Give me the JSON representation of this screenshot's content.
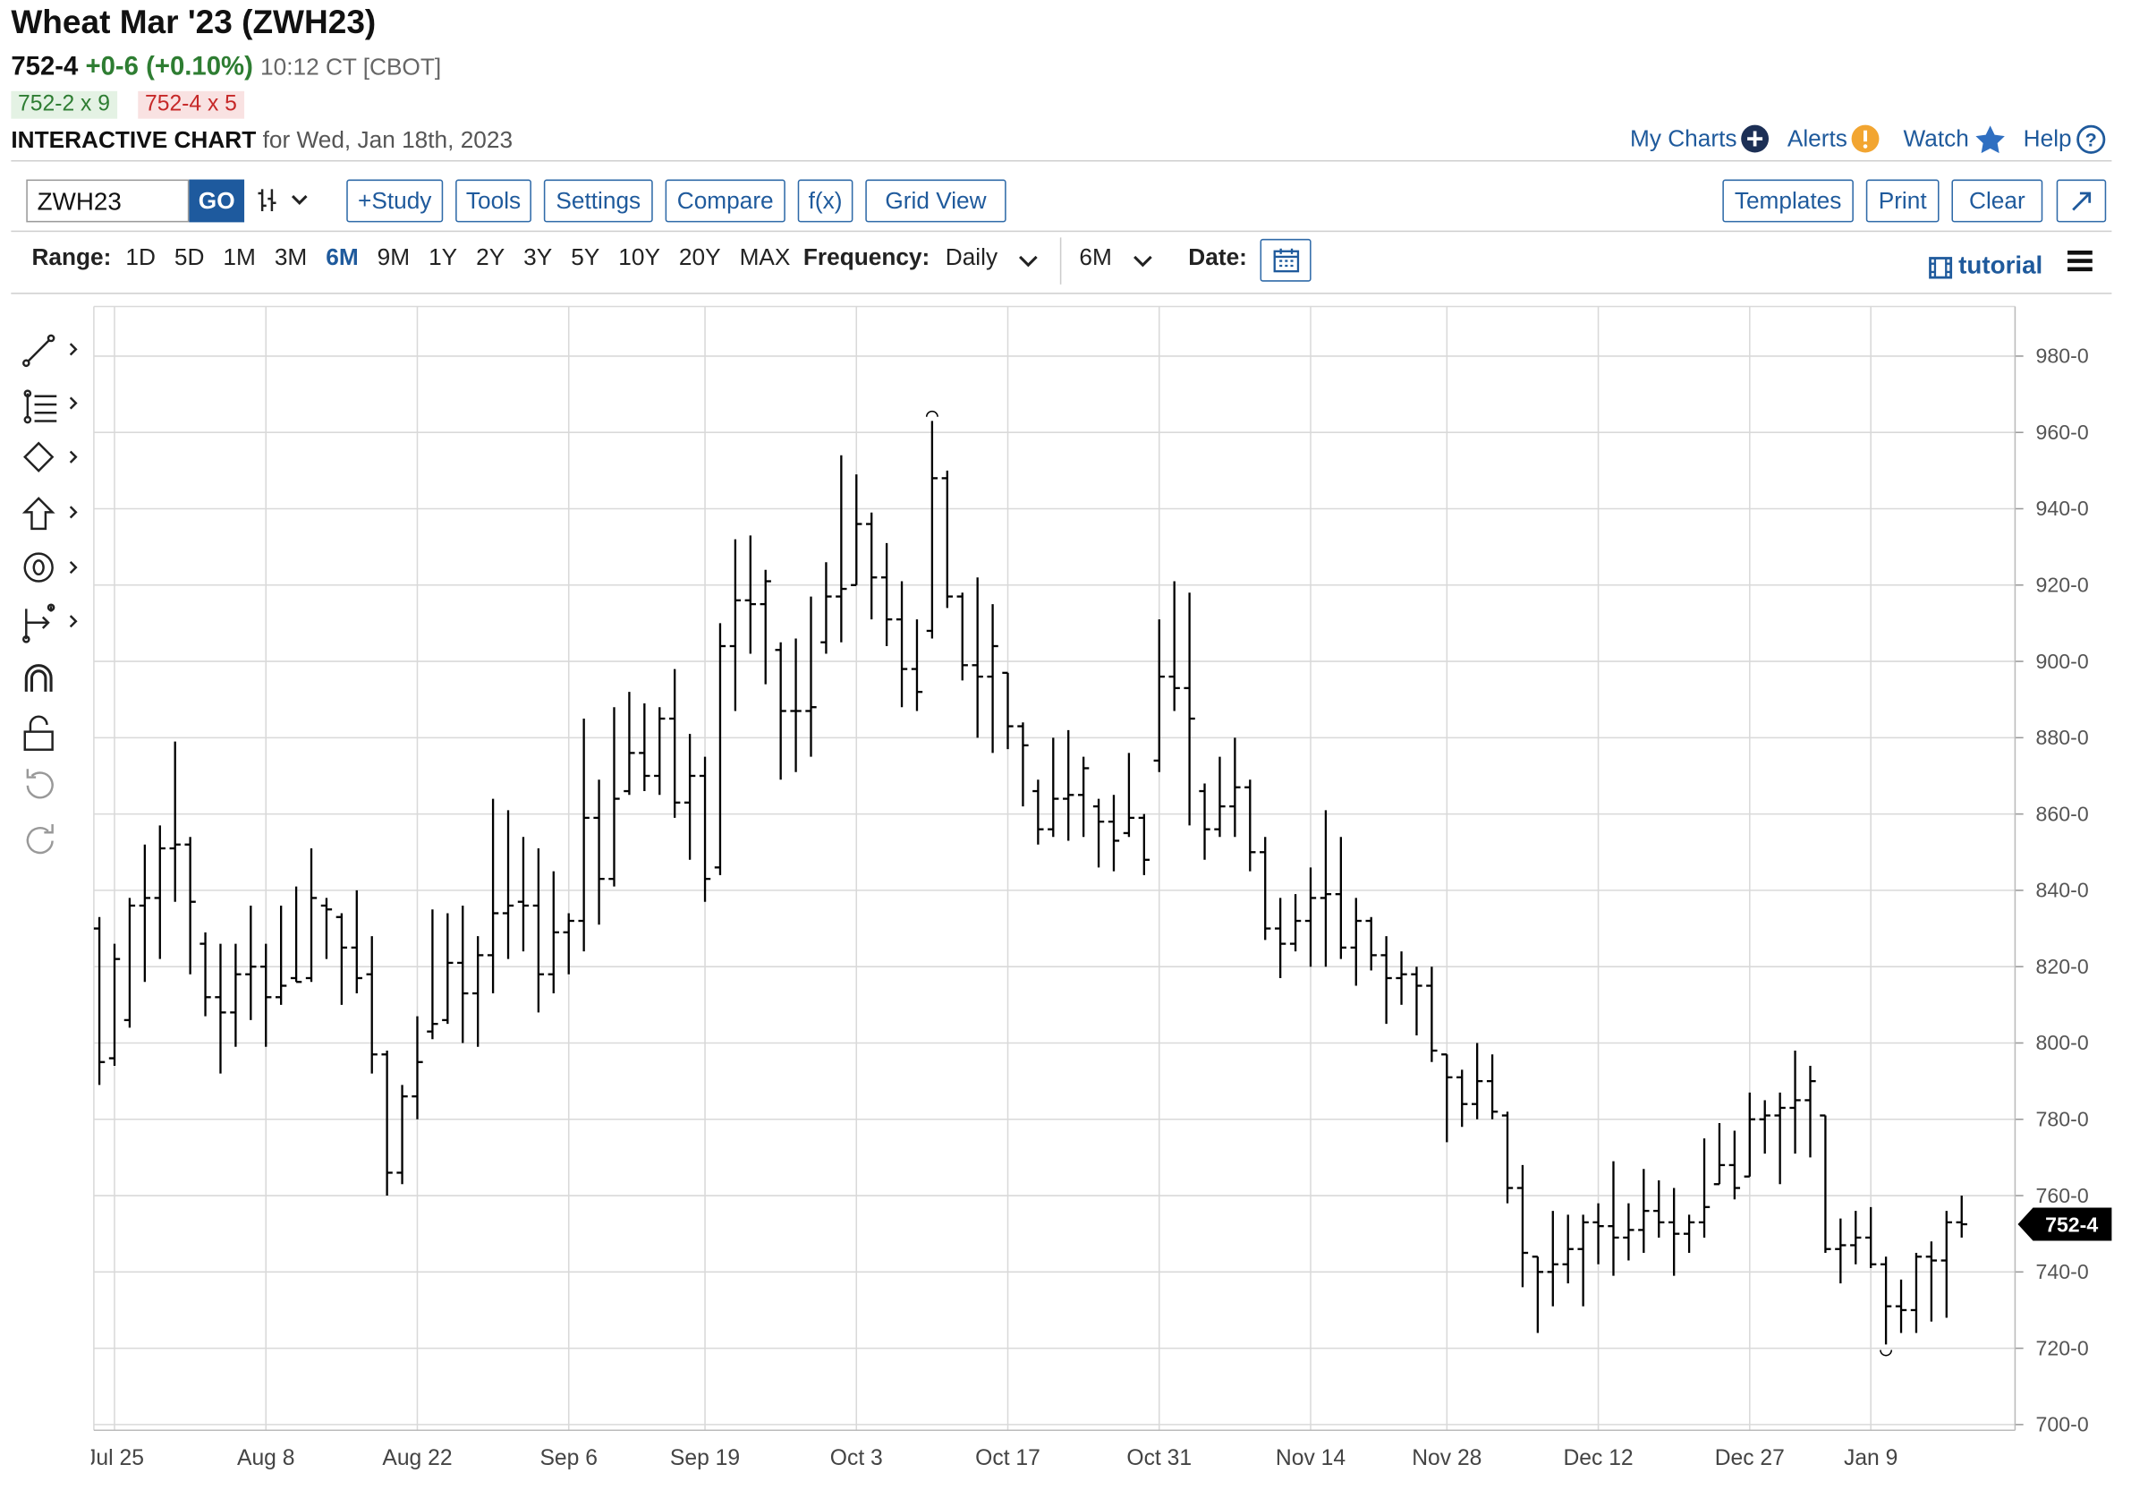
{
  "header": {
    "title": "Wheat Mar '23 (ZWH23)",
    "last": "752-4",
    "change": "+0-6 (+0.10%)",
    "time_exchange": "10:12 CT [CBOT]",
    "bid": "752-2 x 9",
    "ask": "752-4 x 5",
    "chart_label": "INTERACTIVE CHART",
    "date_text": "for Wed, Jan 18th, 2023"
  },
  "nav": [
    "My Charts",
    "Alerts",
    "Watch",
    "Help"
  ],
  "toolbar": {
    "symbol": "ZWH23",
    "go": "GO",
    "buttons": [
      "+Study",
      "Tools",
      "Settings",
      "Compare",
      "f(x)",
      "Grid View"
    ],
    "right_buttons": [
      "Templates",
      "Print",
      "Clear"
    ]
  },
  "range_bar": {
    "range_label": "Range:",
    "options": [
      "1D",
      "5D",
      "1M",
      "3M",
      "6M",
      "9M",
      "1Y",
      "2Y",
      "3Y",
      "5Y",
      "10Y",
      "20Y",
      "MAX"
    ],
    "selected": 4,
    "frequency_label": "Frequency:",
    "frequency": "Daily",
    "period": "6M",
    "date_label": "Date:",
    "tutorial": "tutorial"
  },
  "chart_data": {
    "type": "ohlc",
    "color": "#000000",
    "grid": true,
    "categories": [
      null,
      "Jul 25",
      null,
      null,
      null,
      null,
      null,
      null,
      null,
      null,
      null,
      "Aug 8",
      null,
      null,
      null,
      null,
      null,
      null,
      null,
      null,
      null,
      "Aug 22",
      null,
      null,
      null,
      null,
      null,
      null,
      null,
      null,
      null,
      "Sep 6",
      null,
      null,
      null,
      null,
      null,
      null,
      null,
      null,
      "Sep 19",
      null,
      null,
      null,
      null,
      null,
      null,
      null,
      null,
      null,
      "Oct 3",
      null,
      null,
      null,
      null,
      null,
      null,
      null,
      null,
      null,
      "Oct 17",
      null,
      null,
      null,
      null,
      null,
      null,
      null,
      null,
      null,
      "Oct 31",
      null,
      null,
      null,
      null,
      null,
      null,
      null,
      null,
      null,
      "Nov 14",
      null,
      null,
      null,
      null,
      null,
      null,
      null,
      null,
      "Nov 28",
      null,
      null,
      null,
      null,
      null,
      null,
      null,
      null,
      null,
      "Dec 12",
      null,
      null,
      null,
      null,
      null,
      null,
      null,
      null,
      null,
      "Dec 27",
      null,
      null,
      null,
      null,
      null,
      null,
      null,
      "Jan 9",
      null,
      null,
      null,
      null,
      null,
      null
    ],
    "open": [
      830,
      796,
      806,
      836,
      838,
      851,
      852,
      826,
      812,
      808,
      818,
      820,
      812,
      817,
      817,
      836,
      833,
      825,
      818,
      797,
      766,
      786,
      803,
      806,
      821,
      813,
      823,
      834,
      837,
      836,
      818,
      829,
      832,
      859,
      843,
      866,
      876,
      870,
      885,
      863,
      870,
      846,
      904,
      916,
      915,
      903,
      887,
      887,
      905,
      917,
      920,
      936,
      922,
      911,
      898,
      908,
      948,
      917,
      899,
      896,
      897,
      883,
      866,
      856,
      864,
      865,
      862,
      858,
      855,
      859,
      874,
      896,
      893,
      866,
      856,
      862,
      867,
      850,
      830,
      826,
      832,
      838,
      839,
      825,
      832,
      823,
      817,
      818,
      815,
      797,
      791,
      784,
      790,
      781,
      762,
      744,
      740,
      742,
      746,
      753,
      752,
      749,
      751,
      756,
      753,
      750,
      753,
      763,
      768,
      765,
      780,
      781,
      783,
      785,
      781,
      746,
      747,
      749,
      742,
      731,
      730,
      744,
      743,
      753
    ],
    "high": [
      833,
      826,
      838,
      852,
      857,
      879,
      854,
      829,
      826,
      826,
      836,
      826,
      836,
      841,
      851,
      838,
      834,
      840,
      828,
      798,
      789,
      807,
      835,
      834,
      836,
      828,
      864,
      861,
      854,
      851,
      845,
      834,
      885,
      869,
      888,
      892,
      889,
      888,
      898,
      881,
      875,
      910,
      932,
      933,
      924,
      905,
      906,
      917,
      926,
      954,
      949,
      939,
      931,
      921,
      911,
      963,
      950,
      918,
      922,
      915,
      897,
      884,
      869,
      880,
      882,
      875,
      864,
      865,
      876,
      860,
      911,
      921,
      918,
      868,
      875,
      880,
      869,
      854,
      838,
      839,
      846,
      861,
      854,
      838,
      833,
      828,
      824,
      820,
      820,
      797,
      793,
      800,
      797,
      782,
      768,
      744,
      756,
      755,
      755,
      758,
      769,
      758,
      767,
      764,
      762,
      755,
      775,
      779,
      777,
      787,
      785,
      787,
      798,
      794,
      781,
      754,
      756,
      757,
      744,
      738,
      745,
      748,
      756,
      760
    ],
    "low": [
      789,
      794,
      804,
      816,
      822,
      837,
      818,
      807,
      792,
      799,
      806,
      799,
      810,
      816,
      816,
      822,
      810,
      813,
      792,
      760,
      763,
      780,
      801,
      805,
      800,
      799,
      813,
      822,
      824,
      808,
      813,
      818,
      824,
      831,
      841,
      865,
      866,
      865,
      859,
      848,
      837,
      844,
      887,
      902,
      894,
      869,
      871,
      875,
      902,
      905,
      920,
      911,
      904,
      888,
      887,
      906,
      914,
      895,
      880,
      876,
      877,
      862,
      852,
      854,
      853,
      854,
      846,
      845,
      854,
      844,
      871,
      887,
      857,
      848,
      854,
      854,
      845,
      827,
      817,
      824,
      820,
      820,
      822,
      815,
      819,
      805,
      810,
      802,
      795,
      774,
      778,
      780,
      780,
      758,
      736,
      724,
      731,
      737,
      731,
      742,
      739,
      743,
      745,
      749,
      739,
      745,
      749,
      763,
      759,
      765,
      771,
      763,
      771,
      770,
      745,
      737,
      742,
      741,
      721,
      724,
      724,
      727,
      728,
      749
    ],
    "close": [
      795,
      822,
      836,
      838,
      851,
      852,
      837,
      812,
      808,
      818,
      820,
      812,
      815,
      816,
      838,
      835,
      825,
      817,
      797,
      766,
      786,
      795,
      805,
      821,
      813,
      823,
      834,
      836,
      836,
      818,
      829,
      832,
      859,
      843,
      864,
      876,
      870,
      885,
      863,
      870,
      843,
      904,
      916,
      915,
      921,
      887,
      887,
      888,
      917,
      919,
      936,
      922,
      911,
      898,
      892,
      948,
      917,
      899,
      896,
      904,
      883,
      878,
      856,
      864,
      865,
      872,
      858,
      853,
      859,
      848,
      896,
      893,
      885,
      856,
      862,
      867,
      850,
      830,
      826,
      832,
      838,
      839,
      825,
      832,
      823,
      817,
      818,
      815,
      798,
      791,
      784,
      790,
      782,
      762,
      745,
      740,
      742,
      746,
      753,
      752,
      749,
      751,
      756,
      753,
      750,
      753,
      757,
      768,
      762,
      780,
      781,
      783,
      785,
      790,
      746,
      747,
      749,
      742,
      731,
      730,
      744,
      743,
      753,
      752.5
    ],
    "ylim": [
      698.5,
      993
    ],
    "yticks": [
      {
        "value": 700,
        "label": "700-0"
      },
      {
        "value": 720,
        "label": "720-0"
      },
      {
        "value": 740,
        "label": "740-0"
      },
      {
        "value": 760,
        "label": "760-0"
      },
      {
        "value": 780,
        "label": "780-0"
      },
      {
        "value": 800,
        "label": "800-0"
      },
      {
        "value": 820,
        "label": "820-0"
      },
      {
        "value": 840,
        "label": "840-0"
      },
      {
        "value": 860,
        "label": "860-0"
      },
      {
        "value": 880,
        "label": "880-0"
      },
      {
        "value": 900,
        "label": "900-0"
      },
      {
        "value": 920,
        "label": "920-0"
      },
      {
        "value": 940,
        "label": "940-0"
      },
      {
        "value": 960,
        "label": "960-0"
      },
      {
        "value": 980,
        "label": "980-0"
      }
    ]
  }
}
